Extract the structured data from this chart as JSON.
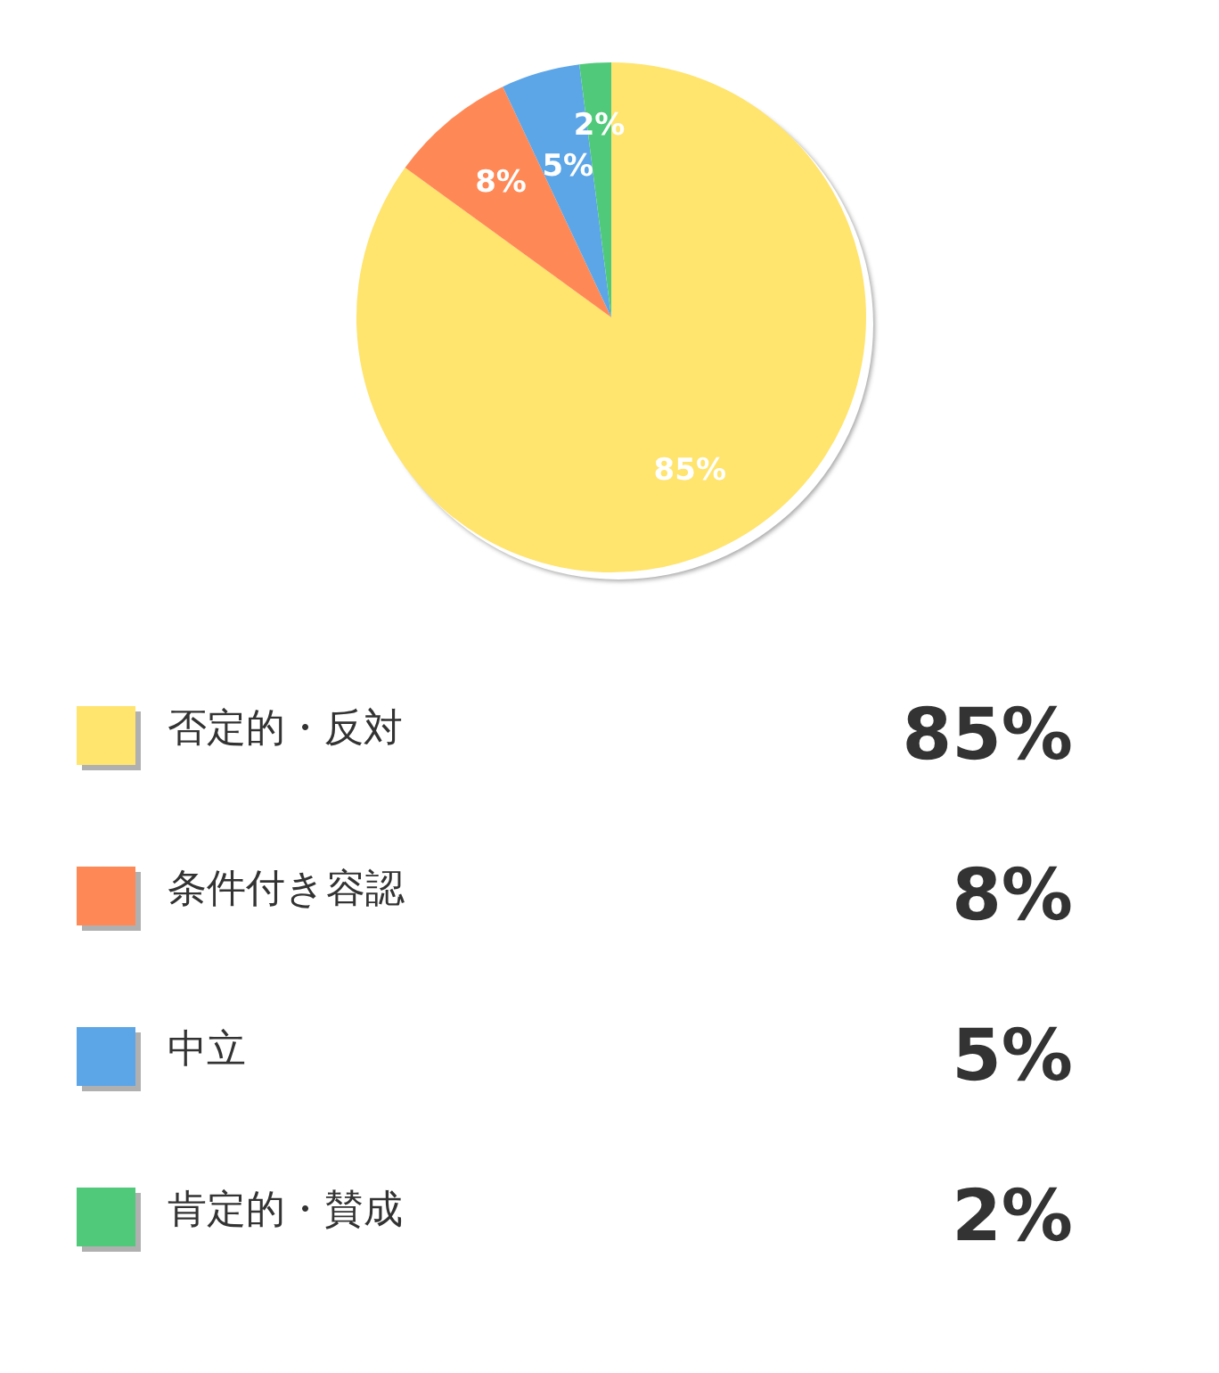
{
  "chart_data": {
    "type": "pie",
    "categories": [
      "否定的・反対",
      "条件付き容認",
      "中立",
      "肯定的・賛成"
    ],
    "values": [
      85,
      8,
      5,
      2
    ],
    "value_labels": [
      "85%",
      "8%",
      "5%",
      "2%"
    ],
    "colors": [
      "#ffe46e",
      "#ff8956",
      "#5ca6e8",
      "#50ca7a"
    ],
    "legend": "bottom"
  }
}
